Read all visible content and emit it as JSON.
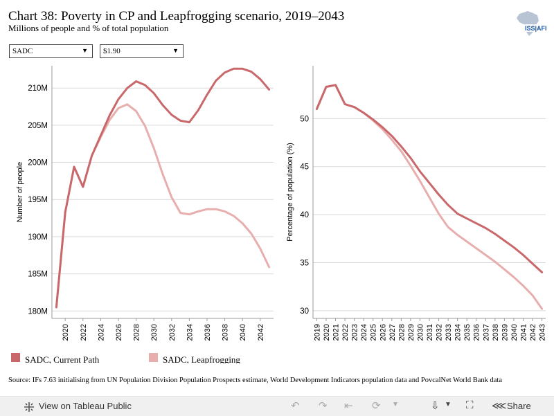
{
  "header": {
    "title": "Chart 38: Poverty in CP and Leapfrogging scenario, 2019–2043",
    "subtitle": "Millions of people and % of total population",
    "logo_text": "ISS AFI"
  },
  "filters": {
    "region": "SADC",
    "poverty_line": "$1.90"
  },
  "colors": {
    "current_path": "#c9686b",
    "leapfrogging": "#e8aeae",
    "grid": "#d9d9d9"
  },
  "chart_data": [
    {
      "type": "line",
      "ylabel": "Number of people",
      "xlabel": "",
      "xlim": [
        2018.5,
        2043.5
      ],
      "ylim": [
        179,
        213
      ],
      "xticks": [
        2020,
        2022,
        2024,
        2026,
        2028,
        2030,
        2032,
        2034,
        2036,
        2038,
        2040,
        2042
      ],
      "xtick_labels": [
        "2020",
        "2022",
        "2024",
        "2026",
        "2028",
        "2030",
        "2032",
        "2034",
        "2036",
        "2038",
        "2040",
        "2042"
      ],
      "yticks": [
        180,
        185,
        190,
        195,
        200,
        205,
        210
      ],
      "ytick_labels": [
        "180M",
        "185M",
        "190M",
        "195M",
        "200M",
        "205M",
        "210M"
      ],
      "x": [
        2019,
        2020,
        2021,
        2022,
        2023,
        2024,
        2025,
        2026,
        2027,
        2028,
        2029,
        2030,
        2031,
        2032,
        2033,
        2034,
        2035,
        2036,
        2037,
        2038,
        2039,
        2040,
        2041,
        2042,
        2043
      ],
      "series": [
        {
          "name": "SADC, Current Path",
          "color": "#c9686b",
          "values": [
            180.5,
            193.3,
            199.4,
            196.7,
            200.9,
            203.6,
            206.3,
            208.5,
            210.0,
            210.9,
            210.4,
            209.3,
            207.7,
            206.4,
            205.6,
            205.4,
            207.0,
            209.1,
            211.0,
            212.1,
            212.6,
            212.6,
            212.2,
            211.2,
            209.8
          ]
        },
        {
          "name": "SADC, Leapfrogging",
          "color": "#e8aeae",
          "values": [
            180.5,
            193.3,
            199.4,
            196.7,
            200.9,
            203.4,
            205.7,
            207.3,
            207.8,
            206.9,
            204.9,
            201.9,
            198.4,
            195.3,
            193.2,
            193.0,
            193.4,
            193.7,
            193.7,
            193.4,
            192.8,
            191.8,
            190.4,
            188.4,
            185.9
          ]
        }
      ]
    },
    {
      "type": "line",
      "ylabel": "Percentage of population (%)",
      "xlabel": "",
      "xlim": [
        2018.6,
        2043.4
      ],
      "ylim": [
        29.2,
        55.5
      ],
      "xticks": [
        2019,
        2020,
        2021,
        2022,
        2023,
        2024,
        2025,
        2026,
        2027,
        2028,
        2029,
        2030,
        2031,
        2032,
        2033,
        2034,
        2035,
        2036,
        2037,
        2038,
        2039,
        2040,
        2041,
        2042,
        2043
      ],
      "xtick_labels": [
        "2019",
        "2020",
        "2021",
        "2022",
        "2023",
        "2024",
        "2025",
        "2026",
        "2027",
        "2028",
        "2029",
        "2030",
        "2031",
        "2032",
        "2033",
        "2034",
        "2035",
        "2036",
        "2037",
        "2038",
        "2039",
        "2040",
        "2041",
        "2042",
        "2043"
      ],
      "yticks": [
        30,
        35,
        40,
        45,
        50
      ],
      "ytick_labels": [
        "30",
        "35",
        "40",
        "45",
        "50"
      ],
      "x": [
        2019,
        2020,
        2021,
        2022,
        2023,
        2024,
        2025,
        2026,
        2027,
        2028,
        2029,
        2030,
        2031,
        2032,
        2033,
        2034,
        2035,
        2036,
        2037,
        2038,
        2039,
        2040,
        2041,
        2042,
        2043
      ],
      "series": [
        {
          "name": "SADC, Current Path",
          "color": "#c9686b",
          "values": [
            51.0,
            53.3,
            53.5,
            51.5,
            51.2,
            50.6,
            49.9,
            49.1,
            48.2,
            47.1,
            45.9,
            44.5,
            43.3,
            42.1,
            41.0,
            40.1,
            39.6,
            39.1,
            38.6,
            38.0,
            37.3,
            36.6,
            35.8,
            34.9,
            34.0
          ]
        },
        {
          "name": "SADC, Leapfrogging",
          "color": "#e8aeae",
          "values": [
            51.0,
            53.3,
            53.5,
            51.5,
            51.2,
            50.6,
            49.8,
            48.9,
            47.8,
            46.6,
            45.1,
            43.5,
            41.8,
            40.1,
            38.7,
            37.9,
            37.2,
            36.5,
            35.8,
            35.1,
            34.3,
            33.5,
            32.6,
            31.6,
            30.2
          ]
        }
      ]
    }
  ],
  "legend": [
    {
      "label": "SADC, Current Path",
      "color": "#c9686b"
    },
    {
      "label": "SADC, Leapfrogging",
      "color": "#e8aeae"
    }
  ],
  "source": "Source: IFs 7.63 initialising from UN Population Division Population Prospects estimate, World Development Indicators population data and PovcalNet World Bank data",
  "footer": {
    "view_label": "View on Tableau Public",
    "share_label": "Share"
  }
}
